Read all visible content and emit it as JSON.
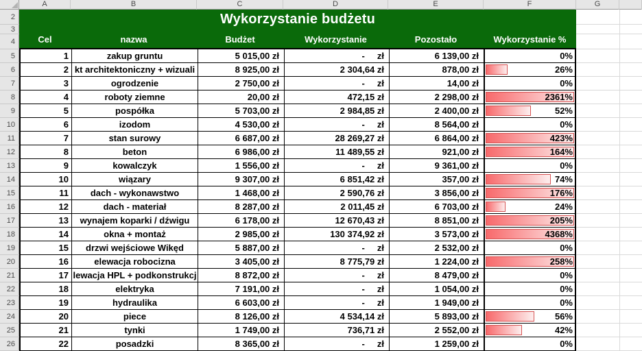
{
  "colors": {
    "header_green": "#0a6a0a",
    "bar_fill_start": "#f8696b",
    "bar_fill_end": "#fdeeee",
    "bar_border": "#d65252",
    "grid_border": "#000000"
  },
  "columns": [
    "A",
    "B",
    "C",
    "D",
    "E",
    "F",
    "G"
  ],
  "row_numbers": [
    "2",
    "3",
    "4",
    "5",
    "6",
    "7",
    "8",
    "9",
    "10",
    "11",
    "12",
    "13",
    "14",
    "15",
    "16",
    "17",
    "18",
    "19",
    "20",
    "21",
    "22",
    "23",
    "24",
    "25",
    "26"
  ],
  "sheet": {
    "title": "Wykorzystanie budżetu",
    "headers": {
      "cel": "Cel",
      "nazwa": "nazwa",
      "budzet": "Budżet",
      "wykorzystanie": "Wykorzystanie",
      "pozostalo": "Pozostało",
      "procent": "Wykorzystanie %"
    },
    "rows": [
      {
        "cel": "1",
        "nazwa": "zakup gruntu",
        "budzet": "5 015,00 zł",
        "wykorzystanie": "-     zł",
        "pozostalo": "6 139,00 zł",
        "procent": "0%",
        "procent_value": 0
      },
      {
        "cel": "2",
        "nazwa": "kt architektoniczny + wizuali",
        "budzet": "8 925,00 zł",
        "wykorzystanie": "2 304,64 zł",
        "pozostalo": "878,00 zł",
        "procent": "26%",
        "procent_value": 26
      },
      {
        "cel": "3",
        "nazwa": "ogrodzenie",
        "budzet": "2 750,00 zł",
        "wykorzystanie": "-     zł",
        "pozostalo": "14,00 zł",
        "procent": "0%",
        "procent_value": 0
      },
      {
        "cel": "4",
        "nazwa": "roboty ziemne",
        "budzet": "20,00 zł",
        "wykorzystanie": "472,15 zł",
        "pozostalo": "2 298,00 zł",
        "procent": "2361%",
        "procent_value": 2361
      },
      {
        "cel": "5",
        "nazwa": "pospółka",
        "budzet": "5 703,00 zł",
        "wykorzystanie": "2 984,85 zł",
        "pozostalo": "2 400,00 zł",
        "procent": "52%",
        "procent_value": 52
      },
      {
        "cel": "6",
        "nazwa": "izodom",
        "budzet": "4 530,00 zł",
        "wykorzystanie": "-     zł",
        "pozostalo": "8 564,00 zł",
        "procent": "0%",
        "procent_value": 0
      },
      {
        "cel": "7",
        "nazwa": "stan surowy",
        "budzet": "6 687,00 zł",
        "wykorzystanie": "28 269,27 zł",
        "pozostalo": "6 864,00 zł",
        "procent": "423%",
        "procent_value": 423
      },
      {
        "cel": "8",
        "nazwa": "beton",
        "budzet": "6 986,00 zł",
        "wykorzystanie": "11 489,55 zł",
        "pozostalo": "921,00 zł",
        "procent": "164%",
        "procent_value": 164
      },
      {
        "cel": "9",
        "nazwa": "kowalczyk",
        "budzet": "1 556,00 zł",
        "wykorzystanie": "-     zł",
        "pozostalo": "9 361,00 zł",
        "procent": "0%",
        "procent_value": 0
      },
      {
        "cel": "10",
        "nazwa": "wiązary",
        "budzet": "9 307,00 zł",
        "wykorzystanie": "6 851,42 zł",
        "pozostalo": "357,00 zł",
        "procent": "74%",
        "procent_value": 74
      },
      {
        "cel": "11",
        "nazwa": "dach - wykonawstwo",
        "budzet": "1 468,00 zł",
        "wykorzystanie": "2 590,76 zł",
        "pozostalo": "3 856,00 zł",
        "procent": "176%",
        "procent_value": 176
      },
      {
        "cel": "12",
        "nazwa": "dach - materiał",
        "budzet": "8 287,00 zł",
        "wykorzystanie": "2 011,45 zł",
        "pozostalo": "6 703,00 zł",
        "procent": "24%",
        "procent_value": 24
      },
      {
        "cel": "13",
        "nazwa": "wynajem koparki / dźwigu",
        "budzet": "6 178,00 zł",
        "wykorzystanie": "12 670,43 zł",
        "pozostalo": "8 851,00 zł",
        "procent": "205%",
        "procent_value": 205
      },
      {
        "cel": "14",
        "nazwa": "okna + montaż",
        "budzet": "2 985,00 zł",
        "wykorzystanie": "130 374,92 zł",
        "pozostalo": "3 573,00 zł",
        "procent": "4368%",
        "procent_value": 4368
      },
      {
        "cel": "15",
        "nazwa": "drzwi wejściowe Wikęd",
        "budzet": "5 887,00 zł",
        "wykorzystanie": "-     zł",
        "pozostalo": "2 532,00 zł",
        "procent": "0%",
        "procent_value": 0
      },
      {
        "cel": "16",
        "nazwa": "elewacja robocizna",
        "budzet": "3 405,00 zł",
        "wykorzystanie": "8 775,79 zł",
        "pozostalo": "1 224,00 zł",
        "procent": "258%",
        "procent_value": 258
      },
      {
        "cel": "17",
        "nazwa": "lewacja HPL + podkonstrukcj",
        "budzet": "8 872,00 zł",
        "wykorzystanie": "-     zł",
        "pozostalo": "8 479,00 zł",
        "procent": "0%",
        "procent_value": 0
      },
      {
        "cel": "18",
        "nazwa": "elektryka",
        "budzet": "7 191,00 zł",
        "wykorzystanie": "-     zł",
        "pozostalo": "1 054,00 zł",
        "procent": "0%",
        "procent_value": 0
      },
      {
        "cel": "19",
        "nazwa": "hydraulika",
        "budzet": "6 603,00 zł",
        "wykorzystanie": "-     zł",
        "pozostalo": "1 949,00 zł",
        "procent": "0%",
        "procent_value": 0
      },
      {
        "cel": "20",
        "nazwa": "piece",
        "budzet": "8 126,00 zł",
        "wykorzystanie": "4 534,14 zł",
        "pozostalo": "5 893,00 zł",
        "procent": "56%",
        "procent_value": 56
      },
      {
        "cel": "21",
        "nazwa": "tynki",
        "budzet": "1 749,00 zł",
        "wykorzystanie": "736,71 zł",
        "pozostalo": "2 552,00 zł",
        "procent": "42%",
        "procent_value": 42
      },
      {
        "cel": "22",
        "nazwa": "posadzki",
        "budzet": "8 365,00 zł",
        "wykorzystanie": "-     zł",
        "pozostalo": "1 259,00 zł",
        "procent": "0%",
        "procent_value": 0
      }
    ]
  }
}
